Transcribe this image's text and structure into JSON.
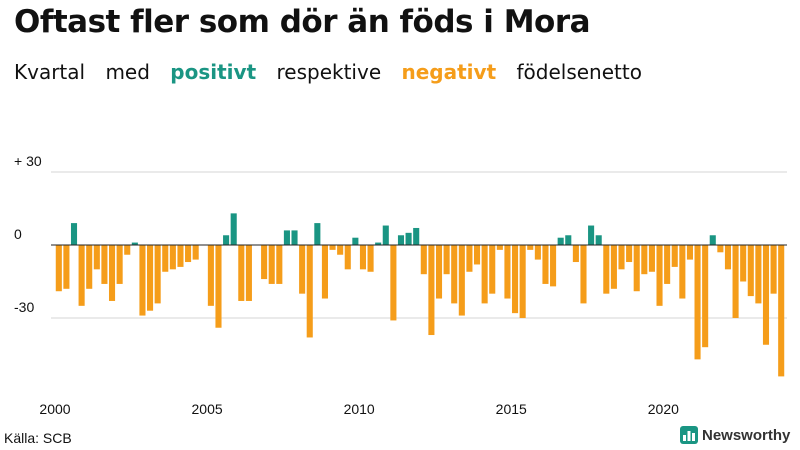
{
  "header": {
    "title": "Oftast fler som dör än föds i Mora",
    "subtitle": {
      "part1": "Kvartal",
      "part2": "med",
      "positive": "positivt",
      "part3": "respektive",
      "negative": "negativt",
      "part4": "födelsenetto"
    }
  },
  "colors": {
    "positive": "#1a9583",
    "negative": "#f59d1a",
    "text": "#111111"
  },
  "footer": {
    "source": "Källa: SCB",
    "brand": "Newsworthy",
    "brand_logo": "newsworthy-logo-icon"
  },
  "chart_data": {
    "type": "bar",
    "title": "Oftast fler som dör än föds i Mora",
    "subtitle": "Kvartal med positivt respektive negativt födelsenetto",
    "xlabel": "",
    "ylabel": "",
    "ylim": [
      -55,
      30
    ],
    "yticks": [
      30,
      0,
      -30
    ],
    "ytick_labels": [
      "+ 30",
      "0",
      "-30"
    ],
    "xtick_years": [
      2000,
      2005,
      2010,
      2015,
      2020
    ],
    "start_year": 2000,
    "start_quarter": 1,
    "values": [
      -19,
      -18,
      9,
      -25,
      -18,
      -10,
      -16,
      -23,
      -16,
      -4,
      1,
      -29,
      -27,
      -24,
      -11,
      -10,
      -9,
      -7,
      -6,
      0,
      -25,
      -34,
      4,
      13,
      -23,
      -23,
      0,
      -14,
      -16,
      -16,
      6,
      6,
      -20,
      -38,
      9,
      -22,
      -2,
      -4,
      -10,
      3,
      -10,
      -11,
      1,
      8,
      -31,
      4,
      5,
      7,
      -12,
      -37,
      -22,
      -12,
      -24,
      -29,
      -11,
      -8,
      -24,
      -20,
      -2,
      -22,
      -28,
      -30,
      -2,
      -6,
      -16,
      -17,
      3,
      4,
      -7,
      -24,
      8,
      4,
      -20,
      -18,
      -10,
      -7,
      -19,
      -12,
      -11,
      -25,
      -16,
      -9,
      -22,
      -6,
      -47,
      -42,
      4,
      -3,
      -10,
      -30,
      -15,
      -21,
      -24,
      -41,
      -20,
      -54
    ]
  }
}
